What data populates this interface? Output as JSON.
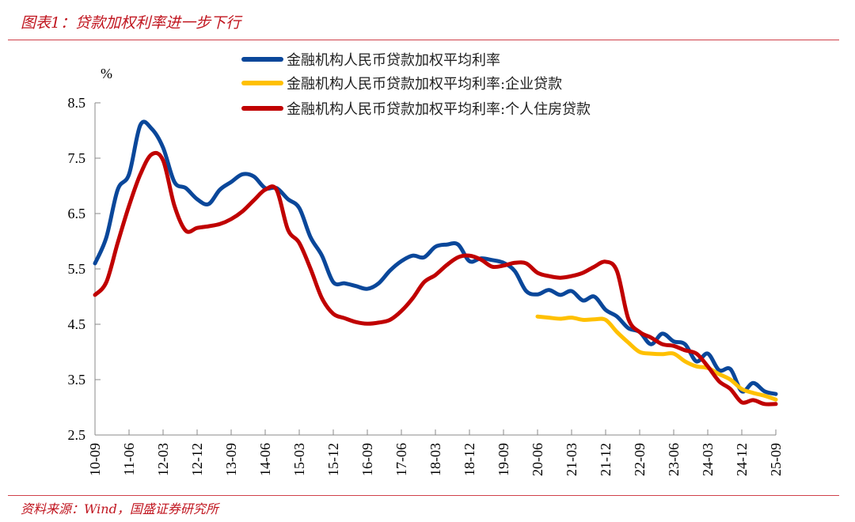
{
  "header": {
    "title": "图表1：贷款加权利率进一步下行"
  },
  "footer": {
    "source": "资料来源：Wind，国盛证券研究所"
  },
  "chart_data": {
    "type": "line",
    "title": "贷款加权利率进一步下行",
    "ylabel": "%",
    "ylim": [
      2.5,
      8.5
    ],
    "yticks": [
      "2.5",
      "3.5",
      "4.5",
      "5.5",
      "6.5",
      "7.5",
      "8.5"
    ],
    "xtick_labels": [
      "10-09",
      "11-06",
      "12-03",
      "12-12",
      "13-09",
      "14-06",
      "15-03",
      "15-12",
      "16-09",
      "17-06",
      "18-03",
      "18-12",
      "19-09",
      "20-06",
      "21-03",
      "21-12",
      "22-09",
      "23-06",
      "24-03",
      "24-12",
      "25-09"
    ],
    "x_start": "2010-09",
    "x_frequency": "quarterly",
    "legend_position": "top",
    "grid": false,
    "series": [
      {
        "name": "金融机构人民币贷款加权平均利率",
        "color": "#0a479a",
        "start_index": 0,
        "values": [
          5.6,
          6.07,
          6.93,
          7.21,
          8.1,
          8.03,
          7.69,
          7.07,
          6.96,
          6.76,
          6.67,
          6.93,
          7.07,
          7.21,
          7.17,
          6.96,
          6.96,
          6.76,
          6.6,
          6.07,
          5.74,
          5.26,
          5.24,
          5.19,
          5.14,
          5.24,
          5.47,
          5.64,
          5.74,
          5.71,
          5.9,
          5.94,
          5.94,
          5.64,
          5.69,
          5.66,
          5.61,
          5.46,
          5.1,
          5.04,
          5.12,
          5.03,
          5.1,
          4.93,
          5.0,
          4.76,
          4.64,
          4.43,
          4.36,
          4.14,
          4.33,
          4.19,
          4.14,
          3.83,
          3.97,
          3.67,
          3.69,
          3.29,
          3.44,
          3.29,
          3.24
        ]
      },
      {
        "name": "金融机构人民币贷款加权平均利率:企业贷款",
        "color": "#ffc000",
        "start_index": 39,
        "values": [
          4.64,
          4.62,
          4.6,
          4.62,
          4.58,
          4.59,
          4.58,
          4.36,
          4.17,
          4.0,
          3.97,
          3.96,
          3.97,
          3.83,
          3.74,
          3.71,
          3.6,
          3.5,
          3.33,
          3.26,
          3.21,
          3.14
        ]
      },
      {
        "name": "金融机构人民币贷款加权平均利率:个人住房贷款",
        "color": "#c00000",
        "start_index": 0,
        "values": [
          5.03,
          5.26,
          5.97,
          6.64,
          7.21,
          7.57,
          7.46,
          6.64,
          6.19,
          6.24,
          6.27,
          6.31,
          6.4,
          6.54,
          6.74,
          6.93,
          6.93,
          6.21,
          5.97,
          5.5,
          4.97,
          4.69,
          4.61,
          4.54,
          4.51,
          4.53,
          4.58,
          4.74,
          4.97,
          5.26,
          5.39,
          5.57,
          5.71,
          5.74,
          5.67,
          5.54,
          5.56,
          5.61,
          5.6,
          5.43,
          5.37,
          5.34,
          5.37,
          5.43,
          5.54,
          5.63,
          5.46,
          4.6,
          4.36,
          4.26,
          4.14,
          4.11,
          4.03,
          3.97,
          3.74,
          3.47,
          3.33,
          3.09,
          3.13,
          3.06,
          3.06
        ]
      }
    ]
  }
}
